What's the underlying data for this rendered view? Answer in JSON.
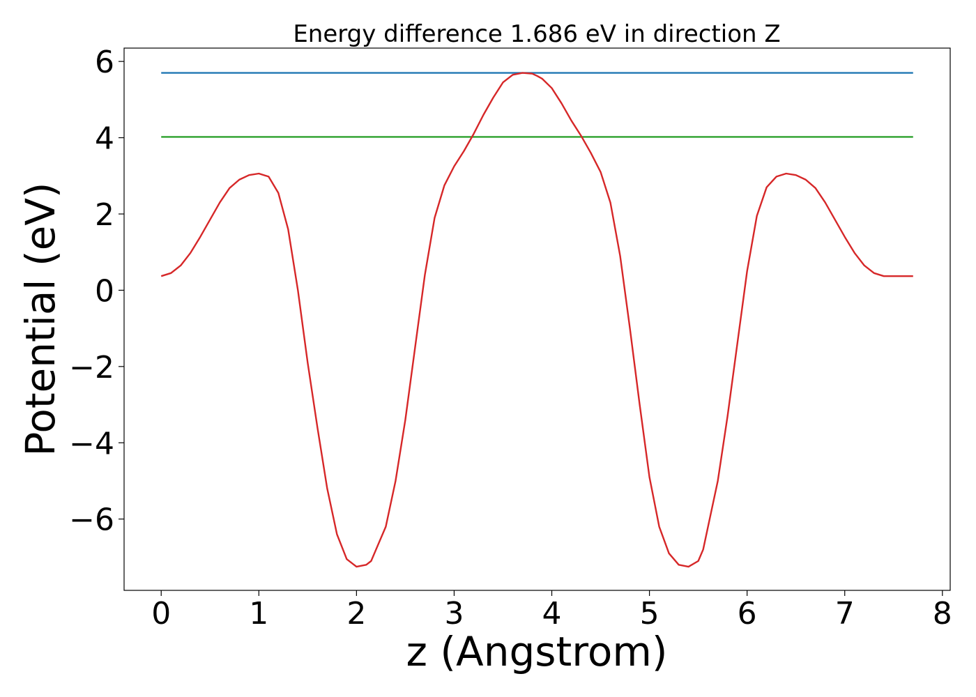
{
  "chart_data": {
    "type": "line",
    "title": "Energy difference 1.686 eV in direction Z",
    "xlabel": "z (Angstrom)",
    "ylabel": "Potential (eV)",
    "xlim": [
      -0.38,
      8.08
    ],
    "ylim": [
      -7.87,
      6.35
    ],
    "xticks": [
      0,
      1,
      2,
      3,
      4,
      5,
      6,
      7,
      8
    ],
    "yticks": [
      -6,
      -4,
      -2,
      0,
      2,
      4,
      6
    ],
    "ytick_labels": [
      "−6",
      "−4",
      "−2",
      "0",
      "2",
      "4",
      "6"
    ],
    "grid": false,
    "series": [
      {
        "color": "#1f77b4",
        "x": [
          0,
          7.7
        ],
        "y": [
          5.7,
          5.7
        ]
      },
      {
        "color": "#2ca02c",
        "x": [
          0,
          7.7
        ],
        "y": [
          4.02,
          4.02
        ]
      },
      {
        "color": "#d62728",
        "x": [
          0.0,
          0.1,
          0.2,
          0.3,
          0.4,
          0.5,
          0.6,
          0.7,
          0.8,
          0.9,
          1.0,
          1.1,
          1.2,
          1.3,
          1.4,
          1.5,
          1.6,
          1.7,
          1.8,
          1.9,
          2.0,
          2.1,
          2.15,
          2.2,
          2.3,
          2.4,
          2.5,
          2.6,
          2.7,
          2.8,
          2.9,
          3.0,
          3.1,
          3.2,
          3.3,
          3.4,
          3.5,
          3.6,
          3.7,
          3.8,
          3.85,
          3.9,
          4.0,
          4.1,
          4.2,
          4.3,
          4.4,
          4.5,
          4.6,
          4.7,
          4.8,
          4.9,
          5.0,
          5.1,
          5.2,
          5.3,
          5.4,
          5.5,
          5.55,
          5.6,
          5.7,
          5.8,
          5.9,
          6.0,
          6.1,
          6.2,
          6.3,
          6.4,
          6.5,
          6.6,
          6.7,
          6.8,
          6.9,
          7.0,
          7.1,
          7.2,
          7.3,
          7.4,
          7.5,
          7.6,
          7.7
        ],
        "y": [
          0.37,
          0.45,
          0.65,
          0.98,
          1.4,
          1.85,
          2.3,
          2.68,
          2.9,
          3.02,
          3.06,
          2.98,
          2.55,
          1.6,
          0.0,
          -1.9,
          -3.6,
          -5.2,
          -6.4,
          -7.05,
          -7.25,
          -7.2,
          -7.1,
          -6.8,
          -6.2,
          -5.0,
          -3.4,
          -1.5,
          0.4,
          1.9,
          2.75,
          3.25,
          3.65,
          4.1,
          4.6,
          5.05,
          5.45,
          5.65,
          5.7,
          5.68,
          5.62,
          5.55,
          5.3,
          4.9,
          4.45,
          4.05,
          3.6,
          3.1,
          2.3,
          0.9,
          -1.0,
          -3.0,
          -4.9,
          -6.2,
          -6.9,
          -7.2,
          -7.25,
          -7.1,
          -6.8,
          -6.2,
          -5.0,
          -3.3,
          -1.4,
          0.5,
          1.95,
          2.7,
          2.98,
          3.06,
          3.02,
          2.9,
          2.68,
          2.3,
          1.85,
          1.4,
          0.98,
          0.65,
          0.45,
          0.37,
          0.37,
          0.37,
          0.37
        ]
      }
    ]
  }
}
